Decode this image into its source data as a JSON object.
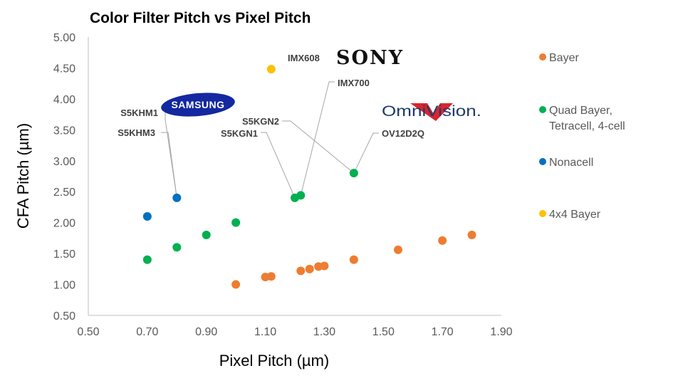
{
  "chart_data": {
    "type": "scatter",
    "title": "Color Filter Pitch vs Pixel Pitch",
    "xlabel": "Pixel Pitch (µm)",
    "ylabel": "CFA Pitch (µm)",
    "xlim": [
      0.5,
      1.9
    ],
    "ylim": [
      0.5,
      5.0
    ],
    "xticks": [
      "0.50",
      "0.70",
      "0.90",
      "1.10",
      "1.30",
      "1.50",
      "1.70",
      "1.90"
    ],
    "yticks": [
      "0.50",
      "1.00",
      "1.50",
      "2.00",
      "2.50",
      "3.00",
      "3.50",
      "4.00",
      "4.50",
      "5.00"
    ],
    "grid": false,
    "legend_position": "right",
    "series": [
      {
        "name": "Bayer",
        "color": "#ED7D31",
        "points": [
          {
            "x": 1.0,
            "y": 1.0
          },
          {
            "x": 1.1,
            "y": 1.12
          },
          {
            "x": 1.12,
            "y": 1.13
          },
          {
            "x": 1.22,
            "y": 1.22
          },
          {
            "x": 1.25,
            "y": 1.25
          },
          {
            "x": 1.28,
            "y": 1.29
          },
          {
            "x": 1.3,
            "y": 1.3
          },
          {
            "x": 1.4,
            "y": 1.4
          },
          {
            "x": 1.55,
            "y": 1.56
          },
          {
            "x": 1.7,
            "y": 1.71
          },
          {
            "x": 1.8,
            "y": 1.8
          }
        ]
      },
      {
        "name": "Quad Bayer,\nTetracell, 4-cell",
        "color": "#00B050",
        "points": [
          {
            "x": 0.7,
            "y": 1.4
          },
          {
            "x": 0.8,
            "y": 1.6
          },
          {
            "x": 0.9,
            "y": 1.8
          },
          {
            "x": 1.0,
            "y": 2.0
          },
          {
            "x": 1.2,
            "y": 2.4
          },
          {
            "x": 1.22,
            "y": 2.44
          },
          {
            "x": 1.4,
            "y": 2.8
          }
        ]
      },
      {
        "name": "Nonacell",
        "color": "#0070C0",
        "points": [
          {
            "x": 0.7,
            "y": 2.1
          },
          {
            "x": 0.8,
            "y": 2.4
          }
        ]
      },
      {
        "name": "4x4 Bayer",
        "color": "#FFC000",
        "points": [
          {
            "x": 1.12,
            "y": 4.48
          }
        ]
      }
    ],
    "annotations": [
      {
        "text": "IMX608",
        "x": 1.12,
        "y": 4.48
      },
      {
        "text": "IMX700",
        "x": 1.22,
        "y": 2.44
      },
      {
        "text": "S5KHM1",
        "x": 0.8,
        "y": 2.4
      },
      {
        "text": "S5KHM3",
        "x": 0.8,
        "y": 2.4
      },
      {
        "text": "S5KGN2",
        "x": 1.4,
        "y": 2.8
      },
      {
        "text": "S5KGN1",
        "x": 1.2,
        "y": 2.4
      },
      {
        "text": "OV12D2Q",
        "x": 1.4,
        "y": 2.8
      }
    ],
    "logos": {
      "sony": "SONY",
      "samsung": "SAMSUNG",
      "omnivision": "OmniVision."
    }
  }
}
